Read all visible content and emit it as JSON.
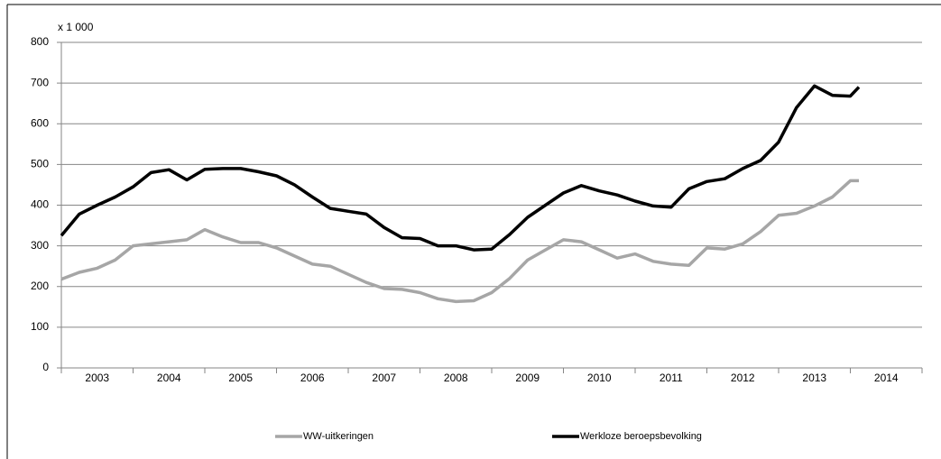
{
  "chart_data": {
    "type": "line",
    "y_axis_label": "x 1 000",
    "ylim": [
      0,
      800
    ],
    "yticks": [
      0,
      100,
      200,
      300,
      400,
      500,
      600,
      700,
      800
    ],
    "grid": true,
    "xlim": [
      2003,
      2015
    ],
    "xticks": [
      2003,
      2004,
      2005,
      2006,
      2007,
      2008,
      2009,
      2010,
      2011,
      2012,
      2013,
      2014,
      2015
    ],
    "x_labels": [
      {
        "value": 2003.5,
        "label": "2003"
      },
      {
        "value": 2004.5,
        "label": "2004"
      },
      {
        "value": 2005.5,
        "label": "2005"
      },
      {
        "value": 2006.5,
        "label": "2006"
      },
      {
        "value": 2007.5,
        "label": "2007"
      },
      {
        "value": 2008.5,
        "label": "2008"
      },
      {
        "value": 2009.5,
        "label": "2009"
      },
      {
        "value": 2010.5,
        "label": "2010"
      },
      {
        "value": 2011.5,
        "label": "2011"
      },
      {
        "value": 2012.5,
        "label": "2012"
      },
      {
        "value": 2013.5,
        "label": "2013"
      },
      {
        "value": 2014.5,
        "label": "2014"
      }
    ],
    "x": [
      2003,
      2003.25,
      2003.5,
      2003.75,
      2004,
      2004.25,
      2004.5,
      2004.75,
      2005,
      2005.25,
      2005.5,
      2005.75,
      2006,
      2006.25,
      2006.5,
      2006.75,
      2007,
      2007.25,
      2007.5,
      2007.75,
      2008,
      2008.25,
      2008.5,
      2008.75,
      2009,
      2009.25,
      2009.5,
      2009.75,
      2010,
      2010.25,
      2010.5,
      2010.75,
      2011,
      2011.25,
      2011.5,
      2011.75,
      2012,
      2012.25,
      2012.5,
      2012.75,
      2013,
      2013.25,
      2013.5,
      2013.75,
      2014,
      2014.12
    ],
    "legend": "bottom",
    "series": [
      {
        "name": "WW-uitkeringen",
        "color": "#a6a6a6",
        "values": [
          218,
          235,
          245,
          265,
          300,
          305,
          310,
          315,
          340,
          322,
          308,
          308,
          295,
          275,
          255,
          250,
          230,
          210,
          195,
          193,
          185,
          170,
          163,
          165,
          185,
          220,
          265,
          290,
          315,
          310,
          290,
          270,
          280,
          262,
          255,
          252,
          295,
          292,
          305,
          335,
          375,
          380,
          398,
          420,
          460,
          460
        ]
      },
      {
        "name": "Werkloze beroepsbevolking",
        "color": "#000000",
        "values": [
          325,
          378,
          400,
          420,
          445,
          480,
          487,
          462,
          488,
          490,
          490,
          482,
          472,
          450,
          420,
          392,
          385,
          378,
          345,
          320,
          318,
          300,
          300,
          290,
          292,
          328,
          370,
          400,
          430,
          448,
          435,
          425,
          410,
          398,
          395,
          440,
          458,
          465,
          490,
          510,
          555,
          640,
          693,
          670,
          668,
          690
        ]
      }
    ]
  }
}
